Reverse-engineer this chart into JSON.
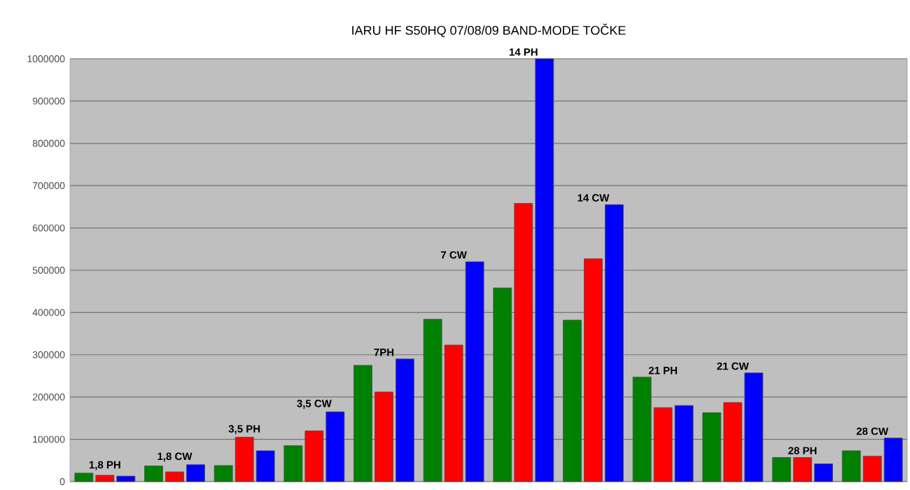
{
  "chart_data": {
    "type": "bar",
    "title": "IARU HF S50HQ 07/08/09 BAND-MODE TOČKE",
    "categories": [
      "1,8 PH",
      "1,8 CW",
      "3,5 PH",
      "3,5 CW",
      "7PH",
      "7 CW",
      "14 PH",
      "14 CW",
      "21 PH",
      "21 CW",
      "28 PH",
      "28 CW"
    ],
    "series": [
      {
        "color": "#008000",
        "values": [
          20000,
          37000,
          38000,
          85000,
          275000,
          384000,
          458000,
          382000,
          247000,
          163000,
          57000,
          73000
        ]
      },
      {
        "color": "#ff0000",
        "values": [
          15000,
          23000,
          105000,
          120000,
          212000,
          323000,
          658000,
          527000,
          175000,
          187000,
          57000,
          60000
        ]
      },
      {
        "color": "#0000ff",
        "values": [
          13000,
          40000,
          73000,
          165000,
          290000,
          520000,
          1000000,
          655000,
          180000,
          257000,
          42000,
          103000
        ]
      }
    ],
    "ylim": [
      0,
      1000000
    ],
    "yticks": [
      0,
      100000,
      200000,
      300000,
      400000,
      500000,
      600000,
      700000,
      800000,
      900000,
      1000000
    ],
    "grid": "y",
    "tick_labels": "y"
  }
}
